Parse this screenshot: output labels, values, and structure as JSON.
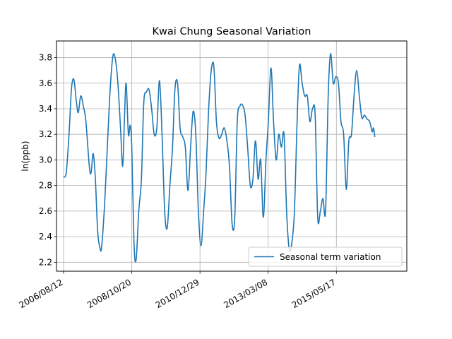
{
  "chart_data": {
    "type": "line",
    "title": "Kwai Chung Seasonal Variation",
    "xlabel": "",
    "ylabel": "ln(ppb)",
    "ylim": [
      2.13,
      3.93
    ],
    "xlim": [
      "2006/05/21",
      "2017/08/20"
    ],
    "yticks": [
      2.2,
      2.4,
      2.6,
      2.8,
      3.0,
      3.2,
      3.4,
      3.6,
      3.8
    ],
    "ytick_labels": [
      "2.2",
      "2.4",
      "2.6",
      "2.8",
      "3.0",
      "3.2",
      "3.4",
      "3.6",
      "3.8"
    ],
    "xticks": [
      "2006/08/12",
      "2008/10/20",
      "2010/12/29",
      "2013/03/08",
      "2015/05/17"
    ],
    "grid": true,
    "legend": {
      "position": "lower-right",
      "entries": [
        "Seasonal term variation"
      ]
    },
    "series": [
      {
        "name": "Seasonal term variation",
        "color": "#1f77b4",
        "points": [
          [
            "2006/08/12",
            2.87
          ],
          [
            "2006/09/12",
            2.9
          ],
          [
            "2006/10/15",
            3.2
          ],
          [
            "2006/11/12",
            3.55
          ],
          [
            "2006/12/10",
            3.63
          ],
          [
            "2007/01/10",
            3.45
          ],
          [
            "2007/02/01",
            3.37
          ],
          [
            "2007/03/01",
            3.5
          ],
          [
            "2007/04/01",
            3.42
          ],
          [
            "2007/05/01",
            3.3
          ],
          [
            "2007/06/10",
            2.95
          ],
          [
            "2007/07/01",
            2.9
          ],
          [
            "2007/07/25",
            3.05
          ],
          [
            "2007/08/20",
            2.85
          ],
          [
            "2007/09/15",
            2.45
          ],
          [
            "2007/10/10",
            2.32
          ],
          [
            "2007/11/01",
            2.32
          ],
          [
            "2007/12/10",
            2.7
          ],
          [
            "2008/02/01",
            3.45
          ],
          [
            "2008/03/10",
            3.8
          ],
          [
            "2008/04/10",
            3.79
          ],
          [
            "2008/05/10",
            3.6
          ],
          [
            "2008/06/10",
            3.25
          ],
          [
            "2008/07/05",
            2.95
          ],
          [
            "2008/07/25",
            3.3
          ],
          [
            "2008/08/15",
            3.6
          ],
          [
            "2008/09/10",
            3.2
          ],
          [
            "2008/10/01",
            3.27
          ],
          [
            "2008/10/20",
            3.1
          ],
          [
            "2008/11/15",
            2.35
          ],
          [
            "2008/12/10",
            2.22
          ],
          [
            "2009/01/10",
            2.6
          ],
          [
            "2009/02/10",
            2.85
          ],
          [
            "2009/03/10",
            3.45
          ],
          [
            "2009/04/10",
            3.53
          ],
          [
            "2009/05/10",
            3.55
          ],
          [
            "2009/06/10",
            3.4
          ],
          [
            "2009/07/10",
            3.2
          ],
          [
            "2009/08/10",
            3.25
          ],
          [
            "2009/09/10",
            3.62
          ],
          [
            "2009/10/10",
            3.2
          ],
          [
            "2009/11/10",
            2.6
          ],
          [
            "2009/12/10",
            2.47
          ],
          [
            "2010/01/10",
            2.8
          ],
          [
            "2010/02/10",
            3.1
          ],
          [
            "2010/03/10",
            3.55
          ],
          [
            "2010/04/10",
            3.6
          ],
          [
            "2010/05/10",
            3.25
          ],
          [
            "2010/06/10",
            3.18
          ],
          [
            "2010/07/10",
            3.1
          ],
          [
            "2010/08/10",
            2.76
          ],
          [
            "2010/09/10",
            3.1
          ],
          [
            "2010/10/10",
            3.38
          ],
          [
            "2010/11/10",
            3.2
          ],
          [
            "2010/12/10",
            2.6
          ],
          [
            "2011/01/10",
            2.33
          ],
          [
            "2011/02/10",
            2.6
          ],
          [
            "2011/03/10",
            2.9
          ],
          [
            "2011/04/10",
            3.4
          ],
          [
            "2011/05/10",
            3.7
          ],
          [
            "2011/06/10",
            3.73
          ],
          [
            "2011/07/10",
            3.3
          ],
          [
            "2011/08/10",
            3.17
          ],
          [
            "2011/09/10",
            3.2
          ],
          [
            "2011/10/10",
            3.25
          ],
          [
            "2011/11/10",
            3.15
          ],
          [
            "2011/12/10",
            2.95
          ],
          [
            "2012/01/10",
            2.5
          ],
          [
            "2012/02/10",
            2.55
          ],
          [
            "2012/03/10",
            3.3
          ],
          [
            "2012/04/10",
            3.42
          ],
          [
            "2012/05/10",
            3.43
          ],
          [
            "2012/06/10",
            3.35
          ],
          [
            "2012/07/10",
            3.1
          ],
          [
            "2012/08/10",
            2.8
          ],
          [
            "2012/09/10",
            2.85
          ],
          [
            "2012/10/10",
            3.15
          ],
          [
            "2012/11/10",
            2.85
          ],
          [
            "2012/12/10",
            3.0
          ],
          [
            "2013/01/10",
            2.55
          ],
          [
            "2013/02/10",
            3.0
          ],
          [
            "2013/03/10",
            3.3
          ],
          [
            "2013/04/10",
            3.72
          ],
          [
            "2013/05/10",
            3.3
          ],
          [
            "2013/06/10",
            3.0
          ],
          [
            "2013/07/10",
            3.2
          ],
          [
            "2013/08/10",
            3.1
          ],
          [
            "2013/09/10",
            3.2
          ],
          [
            "2013/10/10",
            2.6
          ],
          [
            "2013/11/10",
            2.3
          ],
          [
            "2013/12/10",
            2.35
          ],
          [
            "2014/01/10",
            2.6
          ],
          [
            "2014/02/10",
            3.3
          ],
          [
            "2014/03/10",
            3.74
          ],
          [
            "2014/04/10",
            3.6
          ],
          [
            "2014/05/10",
            3.5
          ],
          [
            "2014/06/10",
            3.5
          ],
          [
            "2014/07/10",
            3.3
          ],
          [
            "2014/08/10",
            3.4
          ],
          [
            "2014/09/10",
            3.35
          ],
          [
            "2014/10/10",
            2.55
          ],
          [
            "2014/11/10",
            2.6
          ],
          [
            "2014/12/10",
            2.7
          ],
          [
            "2015/01/10",
            2.6
          ],
          [
            "2015/02/10",
            3.5
          ],
          [
            "2015/03/10",
            3.83
          ],
          [
            "2015/04/10",
            3.6
          ],
          [
            "2015/05/10",
            3.65
          ],
          [
            "2015/06/10",
            3.6
          ],
          [
            "2015/07/10",
            3.3
          ],
          [
            "2015/08/10",
            3.2
          ],
          [
            "2015/09/10",
            2.77
          ],
          [
            "2015/10/10",
            3.15
          ],
          [
            "2015/11/10",
            3.2
          ],
          [
            "2015/12/10",
            3.5
          ],
          [
            "2016/01/10",
            3.7
          ],
          [
            "2016/02/10",
            3.5
          ],
          [
            "2016/03/10",
            3.33
          ],
          [
            "2016/04/10",
            3.35
          ],
          [
            "2016/05/10",
            3.32
          ],
          [
            "2016/06/10",
            3.3
          ],
          [
            "2016/07/10",
            3.22
          ],
          [
            "2016/07/25",
            3.25
          ],
          [
            "2016/08/10",
            3.18
          ]
        ]
      }
    ]
  }
}
